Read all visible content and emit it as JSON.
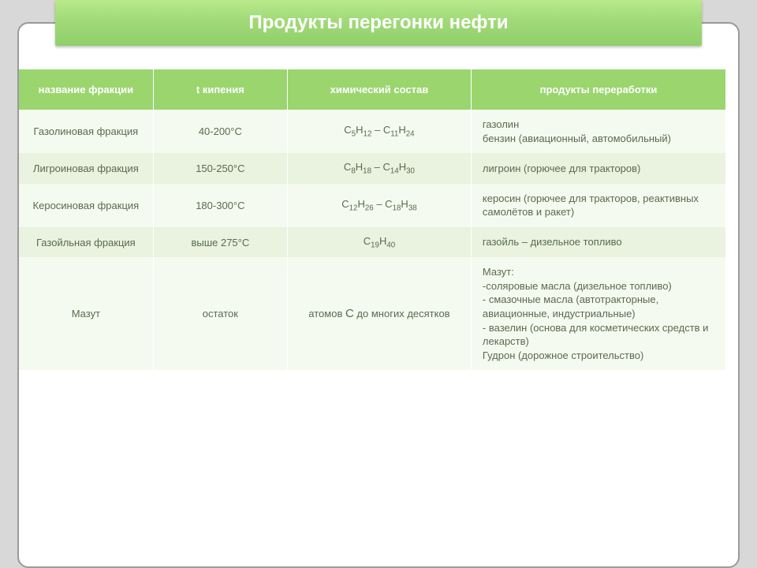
{
  "title": "Продукты перегонки нефти",
  "columns": [
    "название фракции",
    "t кипения",
    "химический состав",
    "продукты переработки"
  ],
  "rows": [
    {
      "name": "Газолиновая фракция",
      "temp": "40-200°С",
      "chem_html": "C<sub>5</sub>H<sub>12</sub> – C<sub>11</sub>H<sub>24</sub>",
      "products": "газолин\nбензин (авиационный, автомобильный)",
      "stripe": "light"
    },
    {
      "name": "Лигроиновая фракция",
      "temp": "150-250°С",
      "chem_html": "C<sub>8</sub>H<sub>18</sub> – C<sub>14</sub>H<sub>30</sub>",
      "products": "лигроин (горючее для тракторов)",
      "stripe": "dark"
    },
    {
      "name": "Керосиновая фракция",
      "temp": "180-300°С",
      "chem_html": "C<sub>12</sub>H<sub>26</sub> – C<sub>18</sub>H<sub>38</sub>",
      "products": "керосин (горючее для тракторов, реактивных самолётов и ракет)",
      "stripe": "light"
    },
    {
      "name": "Газойльная фракция",
      "temp": "выше 275°С",
      "chem_html": "C<sub>19</sub>H<sub>40</sub>",
      "products": "газойль – дизельное топливо",
      "stripe": "dark"
    },
    {
      "name": "Мазут",
      "temp": "остаток",
      "chem_html": "атомов <span style='font-size:15px'>С</span> до многих десятков",
      "products": "Мазут:\n-соляровые масла (дизельное топливо)\n- смазочные масла (автотракторные, авиационные, индустриальные)\n- вазелин (основа для косметических средств и лекарств)\nГудрон (дорожное строительство)",
      "stripe": "light"
    }
  ],
  "colors": {
    "title_bg_top": "#b8e98b",
    "title_bg_bot": "#8fcf6a",
    "header_bg": "#9bd56e",
    "stripe_light": "#f5faf0",
    "stripe_dark": "#e9f3df",
    "text": "#5a6a50",
    "page_bg": "#d8d8d8",
    "frame_border": "#9a9a9a"
  },
  "fonts": {
    "title_size_pt": 24,
    "header_size_pt": 13,
    "body_size_pt": 13
  }
}
